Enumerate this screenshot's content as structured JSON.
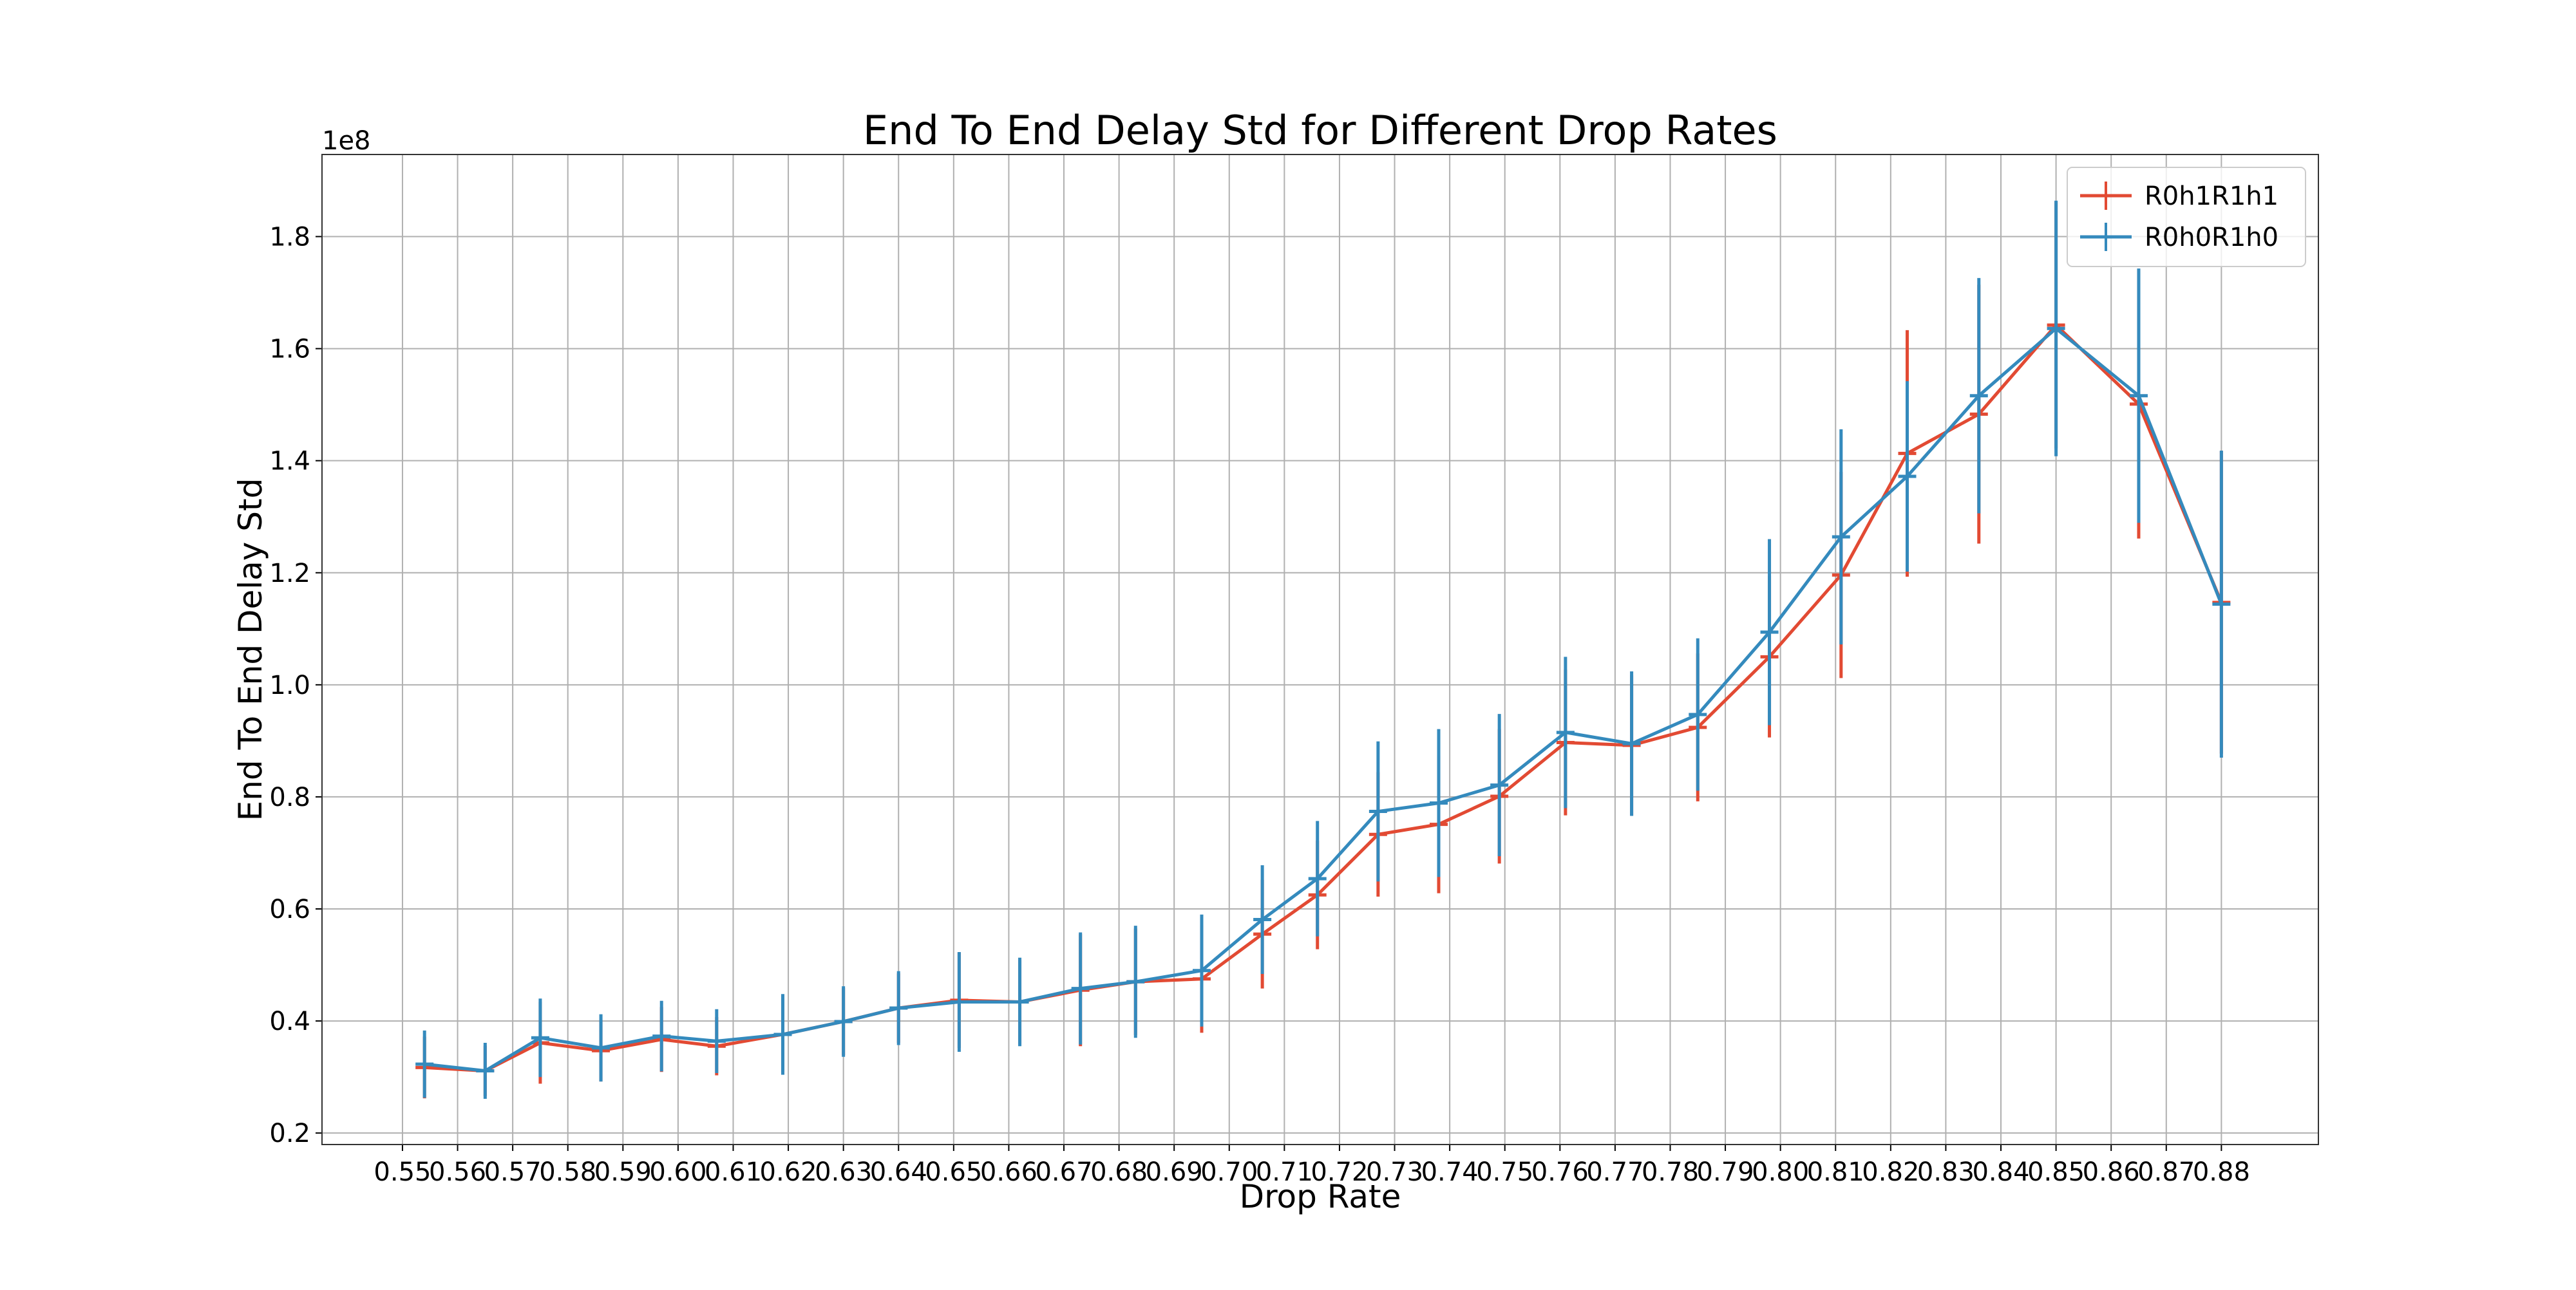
{
  "chart_data": {
    "type": "line",
    "title": "End To End Delay Std for Different Drop Rates",
    "xlabel": "Drop Rate",
    "ylabel": "End To End Delay Std",
    "y_offset_label": "1e8",
    "x": [
      0.554,
      0.565,
      0.575,
      0.586,
      0.597,
      0.607,
      0.619,
      0.63,
      0.64,
      0.651,
      0.662,
      0.673,
      0.683,
      0.695,
      0.706,
      0.716,
      0.727,
      0.738,
      0.749,
      0.761,
      0.773,
      0.785,
      0.798,
      0.811,
      0.823,
      0.836,
      0.85,
      0.865,
      0.88
    ],
    "series": [
      {
        "name": "R0h1R1h1",
        "color": "#e24a33",
        "values": [
          0.317,
          0.311,
          0.361,
          0.347,
          0.367,
          0.355,
          0.376,
          0.399,
          0.423,
          0.437,
          0.434,
          0.455,
          0.47,
          0.475,
          0.555,
          0.625,
          0.733,
          0.751,
          0.801,
          0.897,
          0.892,
          0.924,
          1.05,
          1.196,
          1.413,
          1.483,
          1.642,
          1.501,
          1.147
        ],
        "errors": [
          0.055,
          0.045,
          0.073,
          0.055,
          0.058,
          0.052,
          0.068,
          0.06,
          0.062,
          0.085,
          0.075,
          0.1,
          0.095,
          0.096,
          0.097,
          0.097,
          0.111,
          0.123,
          0.12,
          0.13,
          0.125,
          0.132,
          0.144,
          0.184,
          0.22,
          0.231,
          0.22,
          0.24,
          0.27
        ]
      },
      {
        "name": "R0h0R1h0",
        "color": "#348abd",
        "values": [
          0.323,
          0.311,
          0.37,
          0.352,
          0.373,
          0.364,
          0.376,
          0.399,
          0.423,
          0.434,
          0.434,
          0.458,
          0.47,
          0.49,
          0.581,
          0.654,
          0.774,
          0.789,
          0.821,
          0.915,
          0.895,
          0.947,
          1.094,
          1.264,
          1.372,
          1.516,
          1.636,
          1.516,
          1.144
        ],
        "errors": [
          0.06,
          0.05,
          0.07,
          0.06,
          0.063,
          0.057,
          0.072,
          0.063,
          0.066,
          0.089,
          0.079,
          0.1,
          0.1,
          0.1,
          0.097,
          0.103,
          0.125,
          0.132,
          0.127,
          0.135,
          0.129,
          0.136,
          0.166,
          0.192,
          0.17,
          0.21,
          0.228,
          0.227,
          0.274
        ]
      }
    ],
    "xlim": [
      0.5354,
      0.8976
    ],
    "ylim": [
      0.1795,
      1.9465
    ],
    "xticks": [
      0.55,
      0.56,
      0.57,
      0.58,
      0.59,
      {
        "value": 0.6,
        "label": "0.60"
      },
      0.61,
      0.62,
      0.63,
      0.64,
      0.65,
      0.66,
      0.67,
      0.68,
      0.69,
      {
        "value": 0.7,
        "label": "0.70"
      },
      0.71,
      0.72,
      0.73,
      0.74,
      0.75,
      0.76,
      0.77,
      0.78,
      0.79,
      {
        "value": 0.8,
        "label": "0.80"
      },
      0.81,
      0.82,
      0.83,
      0.84,
      0.85,
      0.86,
      0.87,
      0.88
    ],
    "yticks": [
      0.2,
      0.4,
      0.6,
      0.8,
      {
        "value": 1,
        "label": "1.0"
      },
      1.2,
      1.4,
      1.6,
      1.8
    ],
    "grid": true,
    "legend": "upper right"
  }
}
